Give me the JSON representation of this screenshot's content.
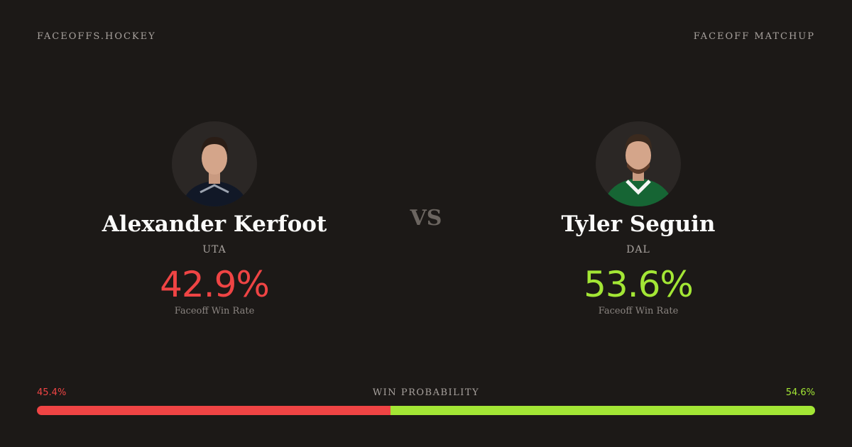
{
  "header": {
    "site": "FACEOFFS.HOCKEY",
    "label": "FACEOFF MATCHUP"
  },
  "players": [
    {
      "name": "Alexander Kerfoot",
      "team": "UTA",
      "rate": "42.9%",
      "rate_label": "Faceoff Win Rate",
      "color": "#ef4444"
    },
    {
      "name": "Tyler Seguin",
      "team": "DAL",
      "rate": "53.6%",
      "rate_label": "Faceoff Win Rate",
      "color": "#a3e635"
    }
  ],
  "vs": "VS",
  "probability": {
    "title": "WIN PROBABILITY",
    "values": [
      45.4,
      54.6
    ],
    "value_labels": [
      "45.4%",
      "54.6%"
    ],
    "scale": [
      0,
      100
    ]
  }
}
